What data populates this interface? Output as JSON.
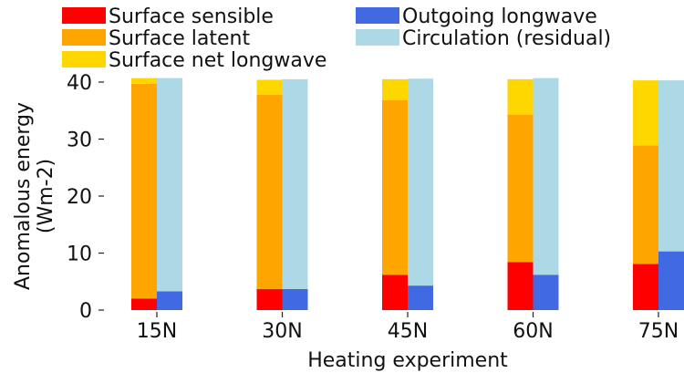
{
  "chart_data": {
    "type": "bar",
    "subtype": "stacked-paired",
    "xlabel": "Heating experiment",
    "ylabel_line1": "Anomalous energy",
    "ylabel_line2": "(Wm-2)",
    "ylim": [
      0,
      40
    ],
    "yticks": [
      0,
      10,
      20,
      30,
      40
    ],
    "categories": [
      "15N",
      "30N",
      "45N",
      "60N",
      "75N"
    ],
    "grid": false,
    "legend_position": "top",
    "left_stack": [
      {
        "name": "Surface sensible",
        "color": "#ff0000",
        "values": [
          2.0,
          3.7,
          6.2,
          8.4,
          8.1
        ]
      },
      {
        "name": "Surface latent",
        "color": "#ffa500",
        "values": [
          37.7,
          34.1,
          30.6,
          25.9,
          20.8
        ]
      },
      {
        "name": "Surface net longwave",
        "color": "#ffd700",
        "values": [
          1.0,
          2.6,
          3.7,
          6.2,
          11.4
        ]
      }
    ],
    "right_stack": [
      {
        "name": "Outgoing longwave",
        "color": "#4169e1",
        "values": [
          3.3,
          3.7,
          4.3,
          6.2,
          10.3
        ]
      },
      {
        "name": "Circulation (residual)",
        "color": "#add8e6",
        "values": [
          37.4,
          36.8,
          36.3,
          34.5,
          30.0
        ]
      }
    ],
    "legend": [
      {
        "name": "Surface sensible",
        "color": "#ff0000"
      },
      {
        "name": "Outgoing longwave",
        "color": "#4169e1"
      },
      {
        "name": "Surface latent",
        "color": "#ffa500"
      },
      {
        "name": "Circulation (residual)",
        "color": "#add8e6"
      },
      {
        "name": "Surface net longwave",
        "color": "#ffd700"
      }
    ]
  }
}
